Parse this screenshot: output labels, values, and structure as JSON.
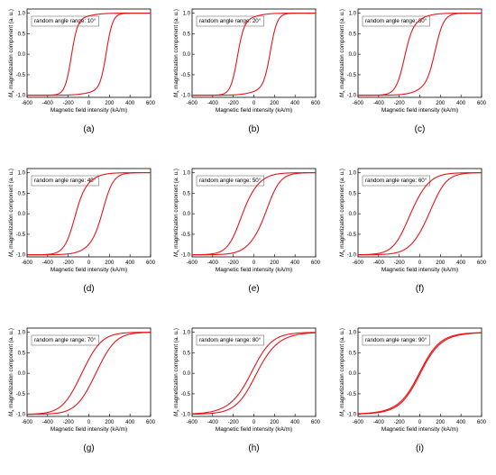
{
  "figure": {
    "ylabel_italic": "M",
    "ylabel_sub": "x",
    "ylabel_rest": " magnetization component (a. u.)",
    "xlabel": "Magnetic field intensity (kA/m)",
    "xticks": [
      "-600",
      "-400",
      "-200",
      "0",
      "200",
      "400",
      "600"
    ],
    "yticks": [
      "-1.0",
      "-0.5",
      "0.0",
      "0.5",
      "1.0"
    ],
    "curve_color": "#e8141b"
  },
  "chart_data": [
    {
      "type": "line",
      "panel": "(a)",
      "annotation": "random angle range: 10°",
      "xlim": [
        -600,
        600
      ],
      "ylim": [
        -1.05,
        1.1
      ],
      "coercivity": 170,
      "xlabel": "Magnetic field intensity (kA/m)",
      "ylabel": "Mx magnetization component (a. u.)",
      "grid": false
    },
    {
      "type": "line",
      "panel": "(b)",
      "annotation": "random angle range: 20°",
      "xlim": [
        -600,
        600
      ],
      "ylim": [
        -1.05,
        1.1
      ],
      "coercivity": 160,
      "xlabel": "Magnetic field intensity (kA/m)",
      "ylabel": "Mx magnetization component (a. u.)",
      "grid": false
    },
    {
      "type": "line",
      "panel": "(c)",
      "annotation": "random angle range: 30°",
      "xlim": [
        -600,
        600
      ],
      "ylim": [
        -1.05,
        1.1
      ],
      "coercivity": 150,
      "xlabel": "Magnetic field intensity (kA/m)",
      "ylabel": "Mx magnetization component (a. u.)",
      "grid": false
    },
    {
      "type": "line",
      "panel": "(d)",
      "annotation": "random angle range: 40°",
      "xlim": [
        -600,
        600
      ],
      "ylim": [
        -1.05,
        1.1
      ],
      "coercivity": 140,
      "xlabel": "Magnetic field intensity (kA/m)",
      "ylabel": "Mx magnetization component (a. u.)",
      "grid": false
    },
    {
      "type": "line",
      "panel": "(e)",
      "annotation": "random angle range: 50°",
      "xlim": [
        -600,
        600
      ],
      "ylim": [
        -1.05,
        1.1
      ],
      "coercivity": 140,
      "xlabel": "Magnetic field intensity (kA/m)",
      "ylabel": "Mx magnetization component (a. u.)",
      "grid": false
    },
    {
      "type": "line",
      "panel": "(f)",
      "annotation": "random angle range: 60°",
      "xlim": [
        -600,
        600
      ],
      "ylim": [
        -1.05,
        1.1
      ],
      "coercivity": 135,
      "xlabel": "Magnetic field intensity (kA/m)",
      "ylabel": "Mx magnetization component (a. u.)",
      "grid": false
    },
    {
      "type": "line",
      "panel": "(g)",
      "annotation": "random angle range: 70°",
      "xlim": [
        -600,
        600
      ],
      "ylim": [
        -1.05,
        1.1
      ],
      "coercivity": 130,
      "xlabel": "Magnetic field intensity (kA/m)",
      "ylabel": "Mx magnetization component (a. u.)",
      "grid": false
    },
    {
      "type": "line",
      "panel": "(h)",
      "annotation": "random angle range: 80°",
      "xlim": [
        -600,
        600
      ],
      "ylim": [
        -1.05,
        1.1
      ],
      "coercivity": 100,
      "xlabel": "Magnetic field intensity (kA/m)",
      "ylabel": "Mx magnetization component (a. u.)",
      "grid": false
    },
    {
      "type": "line",
      "panel": "(i)",
      "annotation": "random angle range: 90°",
      "xlim": [
        -600,
        600
      ],
      "ylim": [
        -1.05,
        1.1
      ],
      "coercivity": 50,
      "xlabel": "Magnetic field intensity (kA/m)",
      "ylabel": "Mx magnetization component (a. u.)",
      "grid": false
    }
  ]
}
